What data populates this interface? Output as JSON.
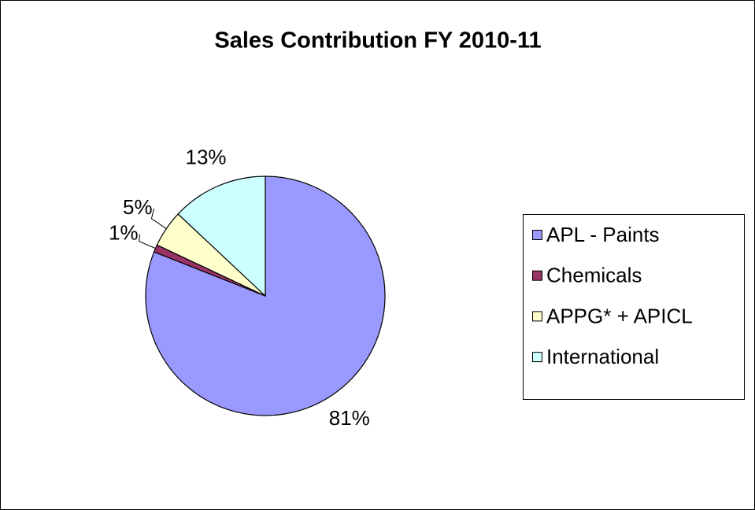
{
  "chart_data": {
    "type": "pie",
    "title": "Sales Contribution FY 2010-11",
    "categories": [
      "APL - Paints",
      "Chemicals",
      "APPG* + APICL",
      "International"
    ],
    "values": [
      81,
      1,
      5,
      13
    ],
    "value_labels": [
      "81%",
      "1%",
      "5%",
      "13%"
    ],
    "colors": [
      "#9999ff",
      "#993366",
      "#ffffcc",
      "#ccffff"
    ],
    "legend": "right"
  }
}
